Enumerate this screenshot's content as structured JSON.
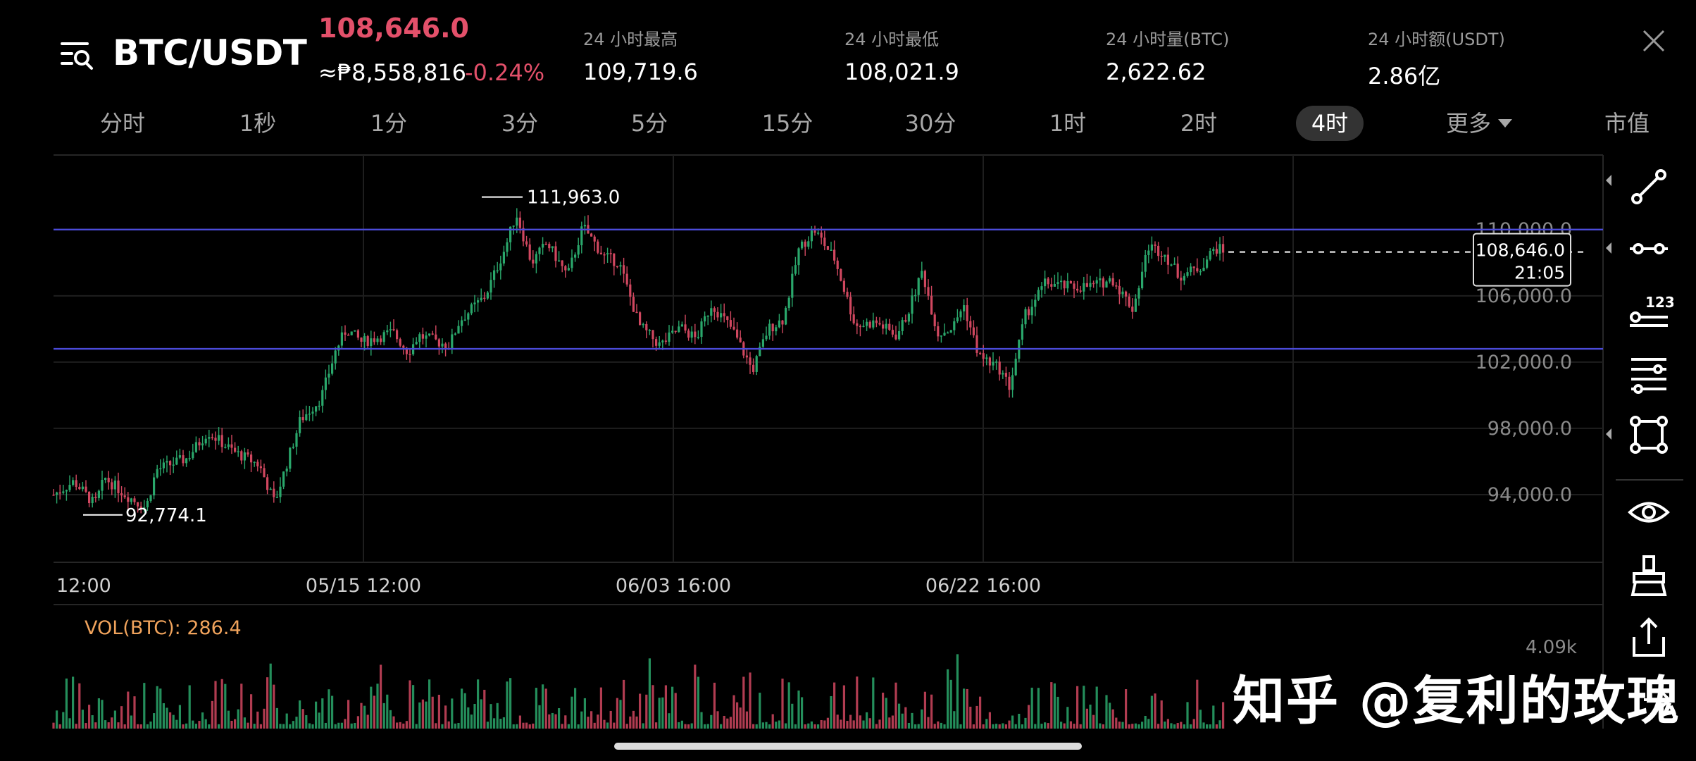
{
  "header": {
    "pair": "BTC/USDT",
    "last_price": "108,646.0",
    "fiat_price": "≈₱8,558,816",
    "change_pct": "-0.24%",
    "stats": [
      {
        "label": "24 小时最高",
        "value": "109,719.6"
      },
      {
        "label": "24 小时最低",
        "value": "108,021.9"
      },
      {
        "label": "24 小时量(BTC)",
        "value": "2,622.62"
      },
      {
        "label": "24 小时额(USDT)",
        "value": "2.86亿"
      }
    ]
  },
  "tabs": [
    "分时",
    "1秒",
    "1分",
    "3分",
    "5分",
    "15分",
    "30分",
    "1时",
    "2时",
    "4时",
    "更多",
    "市值"
  ],
  "active_tab": "4时",
  "chart_data": {
    "type": "candlestick",
    "x_ticks": [
      "12:00",
      "05/15 12:00",
      "06/03 16:00",
      "06/22 16:00"
    ],
    "y_ticks": [
      110000,
      106000,
      102000,
      98000,
      94000
    ],
    "y_tick_labels": [
      "110,000.0",
      "106,000.0",
      "102,000.0",
      "98,000.0",
      "94,000.0"
    ],
    "ylim": [
      90000,
      114500
    ],
    "high_label": "111,963.0",
    "low_label": "92,774.1",
    "current_price": "108,646.0",
    "countdown": "21:05",
    "horizontal_lines": [
      110000,
      102800
    ],
    "close_path": [
      [
        0,
        94000
      ],
      [
        20,
        94800
      ],
      [
        40,
        93400
      ],
      [
        50,
        95000
      ],
      [
        70,
        94000
      ],
      [
        90,
        93200
      ],
      [
        100,
        95500
      ],
      [
        130,
        96200
      ],
      [
        150,
        97800
      ],
      [
        175,
        96600
      ],
      [
        200,
        95800
      ],
      [
        215,
        93500
      ],
      [
        225,
        95500
      ],
      [
        240,
        98500
      ],
      [
        260,
        99800
      ],
      [
        275,
        102800
      ],
      [
        285,
        104000
      ],
      [
        300,
        103200
      ],
      [
        330,
        103800
      ],
      [
        345,
        102600
      ],
      [
        355,
        103600
      ],
      [
        385,
        103000
      ],
      [
        395,
        104500
      ],
      [
        420,
        106000
      ],
      [
        440,
        109000
      ],
      [
        450,
        111000
      ],
      [
        465,
        108000
      ],
      [
        480,
        109200
      ],
      [
        500,
        107200
      ],
      [
        515,
        110200
      ],
      [
        535,
        108400
      ],
      [
        550,
        108000
      ],
      [
        570,
        104200
      ],
      [
        590,
        103000
      ],
      [
        610,
        104100
      ],
      [
        625,
        103400
      ],
      [
        640,
        105500
      ],
      [
        660,
        104000
      ],
      [
        680,
        101500
      ],
      [
        695,
        104000
      ],
      [
        710,
        104600
      ],
      [
        725,
        108800
      ],
      [
        740,
        110000
      ],
      [
        760,
        108200
      ],
      [
        780,
        104200
      ],
      [
        800,
        104400
      ],
      [
        820,
        103600
      ],
      [
        830,
        104800
      ],
      [
        845,
        107500
      ],
      [
        860,
        103700
      ],
      [
        875,
        104100
      ],
      [
        885,
        105500
      ],
      [
        900,
        102400
      ],
      [
        920,
        101600
      ],
      [
        930,
        100500
      ],
      [
        945,
        104800
      ],
      [
        965,
        106800
      ],
      [
        990,
        106500
      ],
      [
        1010,
        106600
      ],
      [
        1030,
        107000
      ],
      [
        1050,
        105200
      ],
      [
        1065,
        109000
      ],
      [
        1080,
        108600
      ],
      [
        1095,
        107200
      ],
      [
        1115,
        107700
      ],
      [
        1130,
        108900
      ],
      [
        1140,
        108650
      ]
    ]
  },
  "volume": {
    "label": "VOL(BTC): 286.4",
    "max_label": "4.09k"
  },
  "toolbar": [
    "trendline-icon",
    "horizontal-ray-icon",
    "price-label-icon",
    "parallel-lines-icon",
    "rectangle-icon",
    "eye-icon",
    "brush-clear-icon",
    "share-icon"
  ],
  "watermark": "知乎 @复利的玫瑰",
  "colors": {
    "up": "#2aa76b",
    "down": "#d0475f",
    "accent": "#e3506a",
    "hline": "#4b4bd9"
  }
}
